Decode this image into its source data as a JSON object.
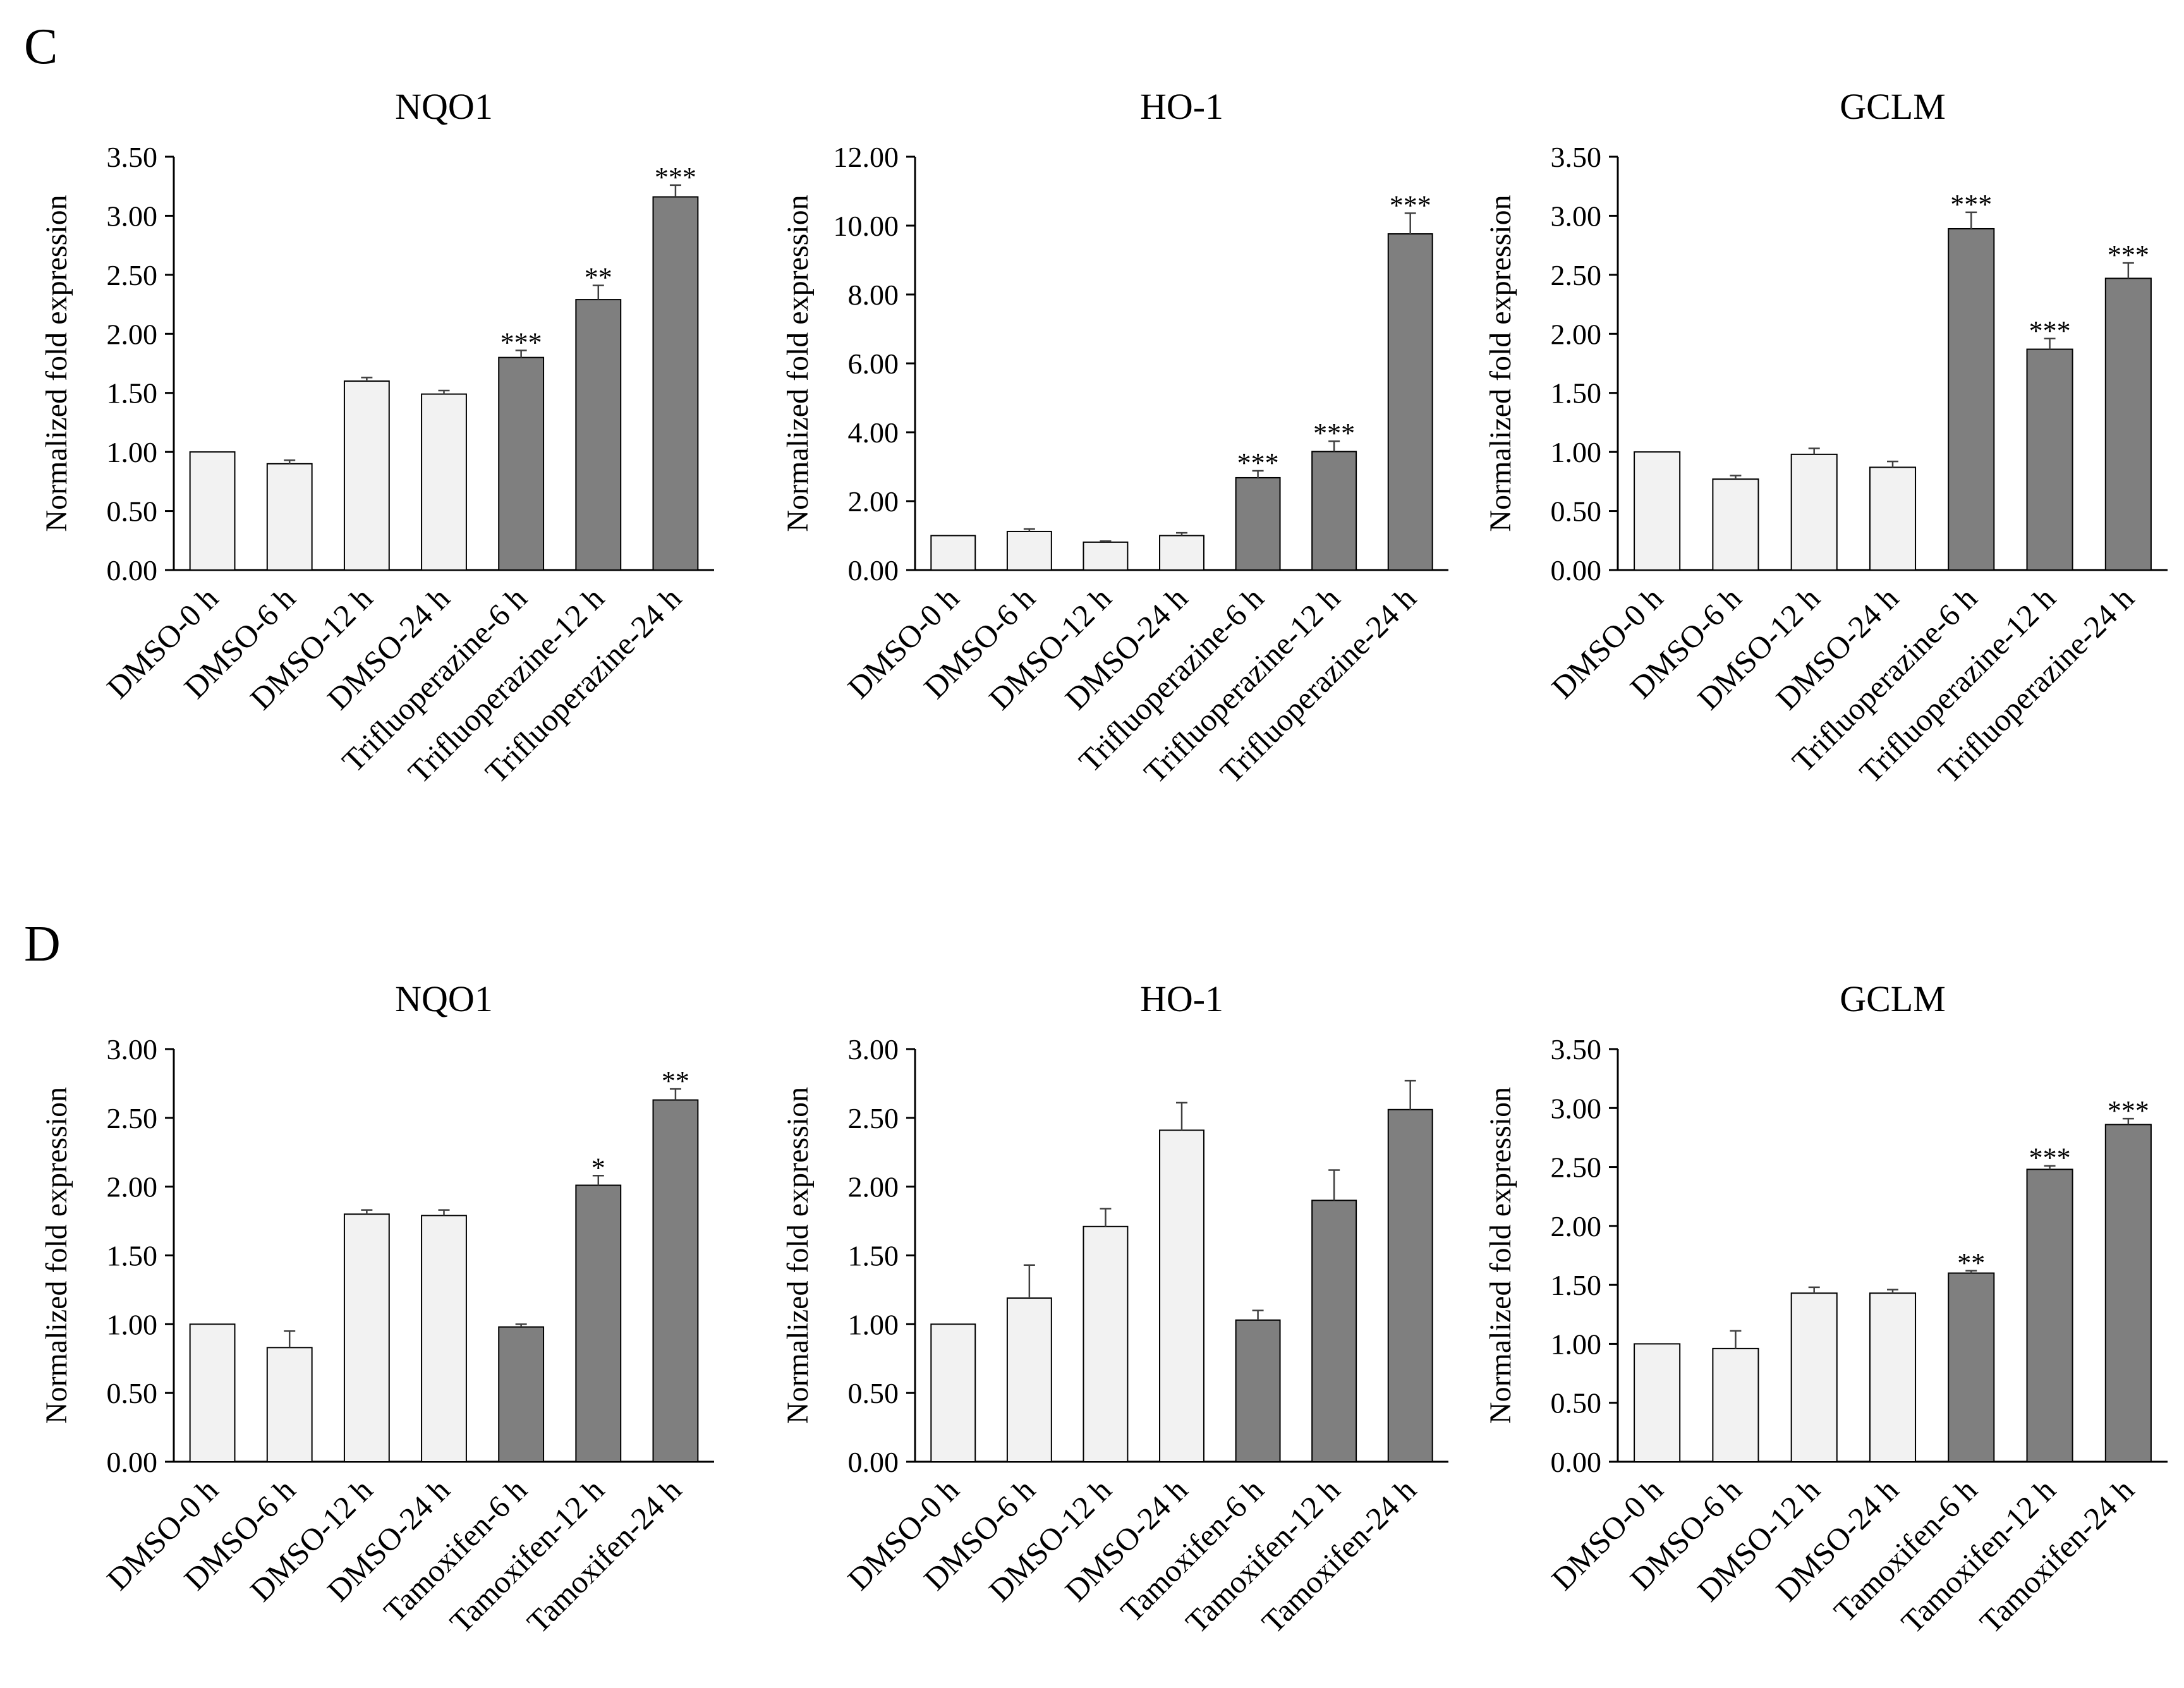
{
  "figure": {
    "panels": [
      {
        "label": "C"
      },
      {
        "label": "D"
      }
    ]
  },
  "colors": {
    "control": "#f2f2f2",
    "treated": "#7f7f7f",
    "stroke": "#000000",
    "error": "#404040"
  },
  "chart_data": [
    {
      "type": "bar",
      "panel": "C",
      "title": "NQO1",
      "ylabel": "Normalized fold expression",
      "ylim": [
        0,
        3.5
      ],
      "yticks": [
        0,
        0.5,
        1.0,
        1.5,
        2.0,
        2.5,
        3.0,
        3.5
      ],
      "decimals": 2,
      "categories": [
        "DMSO-0 h",
        "DMSO-6 h",
        "DMSO-12 h",
        "DMSO-24 h",
        "Trifluoperazine-6 h",
        "Trifluoperazine-12 h",
        "Trifluoperazine-24 h"
      ],
      "values": [
        1.0,
        0.9,
        1.6,
        1.49,
        1.8,
        2.29,
        3.16
      ],
      "errors": [
        0.0,
        0.03,
        0.03,
        0.03,
        0.06,
        0.12,
        0.1
      ],
      "groups": [
        "control",
        "control",
        "control",
        "control",
        "treated",
        "treated",
        "treated"
      ],
      "significance": [
        "",
        "",
        "",
        "",
        "***",
        "**",
        "***"
      ]
    },
    {
      "type": "bar",
      "panel": "C",
      "title": "HO-1",
      "ylabel": "Normalized fold expression",
      "ylim": [
        0,
        12
      ],
      "yticks": [
        0,
        2,
        4,
        6,
        8,
        10,
        12
      ],
      "decimals": 2,
      "categories": [
        "DMSO-0 h",
        "DMSO-6 h",
        "DMSO-12 h",
        "DMSO-24 h",
        "Trifluoperazine-6 h",
        "Trifluoperazine-12 h",
        "Trifluoperazine-24 h"
      ],
      "values": [
        1.0,
        1.12,
        0.81,
        1.0,
        2.68,
        3.44,
        9.76
      ],
      "errors": [
        0.0,
        0.07,
        0.03,
        0.08,
        0.2,
        0.3,
        0.6
      ],
      "groups": [
        "control",
        "control",
        "control",
        "control",
        "treated",
        "treated",
        "treated"
      ],
      "significance": [
        "",
        "",
        "",
        "",
        "***",
        "***",
        "***"
      ]
    },
    {
      "type": "bar",
      "panel": "C",
      "title": "GCLM",
      "ylabel": "Normalized fold expression",
      "ylim": [
        0,
        3.5
      ],
      "yticks": [
        0,
        0.5,
        1.0,
        1.5,
        2.0,
        2.5,
        3.0,
        3.5
      ],
      "decimals": 2,
      "categories": [
        "DMSO-0 h",
        "DMSO-6 h",
        "DMSO-12 h",
        "DMSO-24 h",
        "Trifluoperazine-6 h",
        "Trifluoperazine-12 h",
        "Trifluoperazine-24 h"
      ],
      "values": [
        1.0,
        0.77,
        0.98,
        0.87,
        2.89,
        1.87,
        2.47
      ],
      "errors": [
        0.0,
        0.03,
        0.05,
        0.05,
        0.14,
        0.09,
        0.13
      ],
      "groups": [
        "control",
        "control",
        "control",
        "control",
        "treated",
        "treated",
        "treated"
      ],
      "significance": [
        "",
        "",
        "",
        "",
        "***",
        "***",
        "***"
      ]
    },
    {
      "type": "bar",
      "panel": "D",
      "title": "NQO1",
      "ylabel": "Normalized fold expression",
      "ylim": [
        0,
        3.0
      ],
      "yticks": [
        0,
        0.5,
        1.0,
        1.5,
        2.0,
        2.5,
        3.0
      ],
      "decimals": 2,
      "categories": [
        "DMSO-0 h",
        "DMSO-6 h",
        "DMSO-12 h",
        "DMSO-24 h",
        "Tamoxifen-6 h",
        "Tamoxifen-12 h",
        "Tamoxifen-24 h"
      ],
      "values": [
        1.0,
        0.83,
        1.8,
        1.79,
        0.98,
        2.01,
        2.63
      ],
      "errors": [
        0.0,
        0.12,
        0.03,
        0.04,
        0.02,
        0.07,
        0.08
      ],
      "groups": [
        "control",
        "control",
        "control",
        "control",
        "treated",
        "treated",
        "treated"
      ],
      "significance": [
        "",
        "",
        "",
        "",
        "",
        "*",
        "**"
      ]
    },
    {
      "type": "bar",
      "panel": "D",
      "title": "HO-1",
      "ylabel": "Normalized fold expression",
      "ylim": [
        0,
        3.0
      ],
      "yticks": [
        0,
        0.5,
        1.0,
        1.5,
        2.0,
        2.5,
        3.0
      ],
      "decimals": 2,
      "categories": [
        "DMSO-0 h",
        "DMSO-6 h",
        "DMSO-12 h",
        "DMSO-24 h",
        "Tamoxifen-6 h",
        "Tamoxifen-12 h",
        "Tamoxifen-24 h"
      ],
      "values": [
        1.0,
        1.19,
        1.71,
        2.41,
        1.03,
        1.9,
        2.56
      ],
      "errors": [
        0.0,
        0.24,
        0.13,
        0.2,
        0.07,
        0.22,
        0.21
      ],
      "groups": [
        "control",
        "control",
        "control",
        "control",
        "treated",
        "treated",
        "treated"
      ],
      "significance": [
        "",
        "",
        "",
        "",
        "",
        "",
        ""
      ]
    },
    {
      "type": "bar",
      "panel": "D",
      "title": "GCLM",
      "ylabel": "Normalized fold expression",
      "ylim": [
        0,
        3.5
      ],
      "yticks": [
        0,
        0.5,
        1.0,
        1.5,
        2.0,
        2.5,
        3.0,
        3.5
      ],
      "decimals": 2,
      "categories": [
        "DMSO-0 h",
        "DMSO-6 h",
        "DMSO-12 h",
        "DMSO-24 h",
        "Tamoxifen-6 h",
        "Tamoxifen-12 h",
        "Tamoxifen-24 h"
      ],
      "values": [
        1.0,
        0.96,
        1.43,
        1.43,
        1.6,
        2.48,
        2.86
      ],
      "errors": [
        0.0,
        0.15,
        0.05,
        0.03,
        0.02,
        0.03,
        0.05
      ],
      "groups": [
        "control",
        "control",
        "control",
        "control",
        "treated",
        "treated",
        "treated"
      ],
      "significance": [
        "",
        "",
        "",
        "",
        "**",
        "***",
        "***"
      ]
    }
  ]
}
